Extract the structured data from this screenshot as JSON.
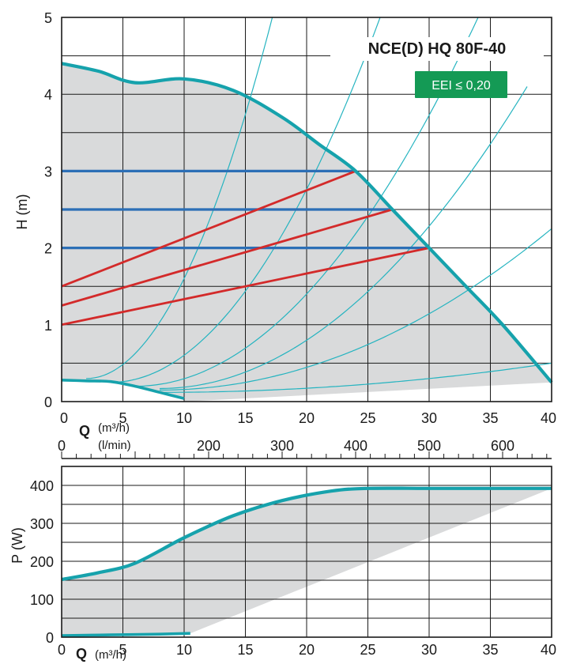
{
  "chart_data": [
    {
      "type": "line",
      "title": "NCE(D) HQ 80F-40",
      "badge": "EEI ≤ 0,20",
      "xlabel": "Q",
      "xunit_primary": "(m³/h)",
      "xunit_secondary": "(l/min)",
      "ylabel": "H (m)",
      "xlim": [
        0,
        40
      ],
      "ylim": [
        0,
        5
      ],
      "x_ticks": [
        0,
        5,
        10,
        15,
        20,
        25,
        30,
        35,
        40
      ],
      "y_ticks": [
        0,
        1,
        2,
        3,
        4,
        5
      ],
      "lmin_ticks": [
        0,
        200,
        300,
        400,
        500,
        600
      ],
      "grid": true,
      "colors": {
        "pump_curve": "#16a2ac",
        "system_curve": "#25b4c0",
        "constant_pressure": "#2c6fb6",
        "proportional_pressure": "#d32a2a",
        "area": "#d9dadb",
        "badge": "#149a55"
      },
      "series": [
        {
          "role": "max-curve",
          "x": [
            0,
            3,
            6,
            10,
            14,
            18,
            21,
            24,
            27,
            30,
            33,
            36,
            40
          ],
          "y": [
            4.4,
            4.3,
            4.15,
            4.2,
            4.05,
            3.7,
            3.35,
            3.0,
            2.5,
            2.0,
            1.5,
            1.0,
            0.25
          ]
        },
        {
          "role": "min-curve",
          "x": [
            0,
            2,
            4,
            6,
            8,
            10
          ],
          "y": [
            0.28,
            0.27,
            0.26,
            0.2,
            0.12,
            0.04
          ]
        },
        {
          "role": "constant-pressure",
          "x": [
            0,
            24
          ],
          "y": [
            3.0,
            3.0
          ]
        },
        {
          "role": "constant-pressure",
          "x": [
            0,
            27
          ],
          "y": [
            2.5,
            2.5
          ]
        },
        {
          "role": "constant-pressure",
          "x": [
            0,
            30
          ],
          "y": [
            2.0,
            2.0
          ]
        },
        {
          "role": "proportional-pressure",
          "x": [
            0,
            24
          ],
          "y": [
            1.5,
            3.0
          ]
        },
        {
          "role": "proportional-pressure",
          "x": [
            0,
            27
          ],
          "y": [
            1.25,
            2.5
          ]
        },
        {
          "role": "proportional-pressure",
          "x": [
            0,
            30
          ],
          "y": [
            1.0,
            2.0
          ]
        }
      ],
      "system_curve_params": [
        {
          "x0": 2.0,
          "y0": 0.3,
          "x1": 17.2,
          "y1": 5.0
        },
        {
          "x0": 4.0,
          "y0": 0.25,
          "x1": 26.0,
          "y1": 5.0
        },
        {
          "x0": 6.0,
          "y0": 0.2,
          "x1": 34.0,
          "y1": 5.0
        },
        {
          "x0": 8.0,
          "y0": 0.17,
          "x1": 38.0,
          "y1": 4.1
        },
        {
          "x0": 8.0,
          "y0": 0.15,
          "x1": 40.0,
          "y1": 2.25
        },
        {
          "x0": 8.0,
          "y0": 0.12,
          "x1": 40.0,
          "y1": 0.5
        }
      ]
    },
    {
      "type": "line",
      "xlabel": "Q",
      "xunit_primary": "(m³/h)",
      "ylabel": "P (W)",
      "xlim": [
        0,
        40
      ],
      "ylim": [
        0,
        450
      ],
      "x_ticks": [
        0,
        5,
        10,
        15,
        20,
        25,
        30,
        35,
        40
      ],
      "y_ticks": [
        0,
        100,
        200,
        300,
        400
      ],
      "grid": true,
      "series": [
        {
          "role": "max-power",
          "x": [
            0,
            3,
            6,
            10,
            14,
            18,
            22,
            25,
            30,
            35,
            40
          ],
          "y": [
            152,
            170,
            195,
            262,
            320,
            360,
            385,
            392,
            392,
            392,
            392
          ]
        },
        {
          "role": "min-power",
          "x": [
            0,
            4,
            8,
            10.5
          ],
          "y": [
            4,
            6,
            8,
            10
          ]
        }
      ]
    }
  ]
}
